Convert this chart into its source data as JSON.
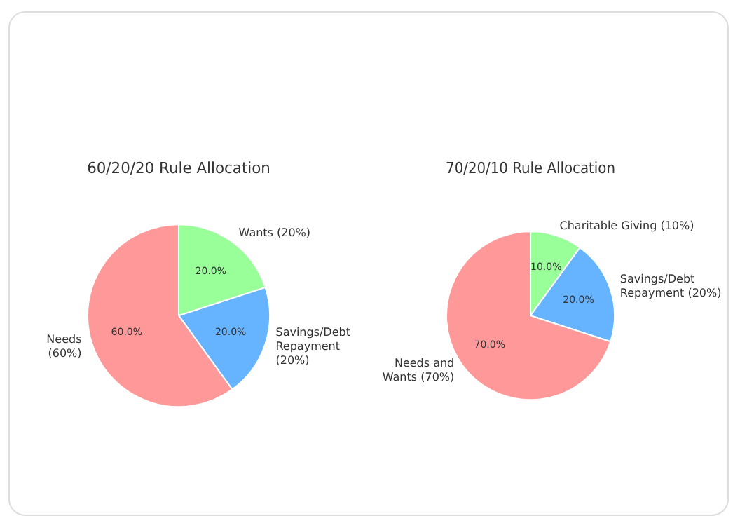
{
  "chart_data": [
    {
      "type": "pie",
      "title": "60/20/20 Rule Allocation",
      "categories": [
        "Wants (20%)",
        "Savings/Debt Repayment (20%)",
        "Needs (60%)"
      ],
      "values": [
        20,
        20,
        60
      ],
      "colors": [
        "#99ff99",
        "#66b3ff",
        "#ff9999"
      ],
      "value_labels": [
        "20.0%",
        "20.0%",
        "60.0%"
      ]
    },
    {
      "type": "pie",
      "title": "70/20/10 Rule Allocation",
      "categories": [
        "Charitable Giving (10%)",
        "Savings/Debt Repayment (20%)",
        "Needs and Wants (70%)"
      ],
      "values": [
        10,
        20,
        70
      ],
      "colors": [
        "#99ff99",
        "#66b3ff",
        "#ff9999"
      ],
      "value_labels": [
        "10.0%",
        "20.0%",
        "70.0%"
      ]
    }
  ]
}
